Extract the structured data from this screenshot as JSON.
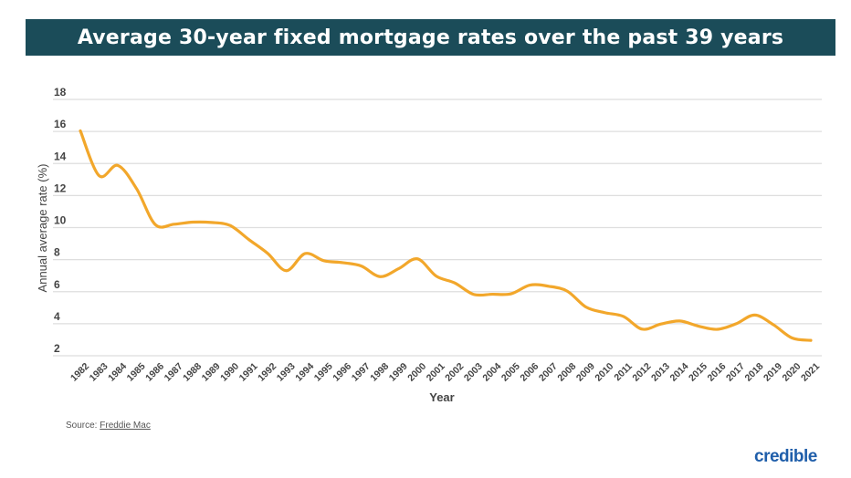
{
  "chart_data": {
    "type": "line",
    "title": "Average 30-year fixed mortgage rates over the past 39 years",
    "xlabel": "Year",
    "ylabel": "Annual average rate (%)",
    "ylim": [
      2,
      18
    ],
    "yticks": [
      2,
      4,
      6,
      8,
      10,
      12,
      14,
      16,
      18
    ],
    "grid": true,
    "line_color": "#f2a72b",
    "x": [
      "1982",
      "1983",
      "1984",
      "1985",
      "1986",
      "1987",
      "1988",
      "1989",
      "1990",
      "1991",
      "1992",
      "1993",
      "1994",
      "1995",
      "1996",
      "1997",
      "1998",
      "1999",
      "2000",
      "2001",
      "2002",
      "2003",
      "2004",
      "2005",
      "2006",
      "2007",
      "2008",
      "2009",
      "2010",
      "2011",
      "2012",
      "2013",
      "2014",
      "2015",
      "2016",
      "2017",
      "2018",
      "2019",
      "2020",
      "2021"
    ],
    "series": [
      {
        "values": [
          16.04,
          13.24,
          13.88,
          12.43,
          10.19,
          10.21,
          10.34,
          10.32,
          10.13,
          9.25,
          8.39,
          7.31,
          8.38,
          7.93,
          7.81,
          7.6,
          6.94,
          7.44,
          8.05,
          6.97,
          6.54,
          5.83,
          5.84,
          5.87,
          6.41,
          6.34,
          6.03,
          5.04,
          4.69,
          4.45,
          3.66,
          3.98,
          4.17,
          3.85,
          3.65,
          3.99,
          4.54,
          3.94,
          3.11,
          2.96
        ]
      }
    ]
  },
  "footer": {
    "source_label": "Source:",
    "source_link": "Freddie Mac",
    "logo": "credible"
  },
  "colors": {
    "banner": "#1b4c59",
    "line": "#f2a72b",
    "logo": "#1f5eaa"
  }
}
